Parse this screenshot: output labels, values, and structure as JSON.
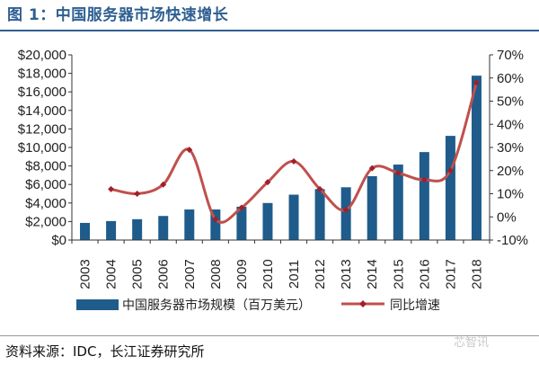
{
  "figure_title": "图 1：中国服务器市场快速增长",
  "source": "资料来源：IDC，长江证券研究所",
  "watermark": "芯智讯",
  "chart_data": {
    "type": "bar",
    "combo": "bar + line (dual axis)",
    "title": "",
    "categories": [
      "2003",
      "2004",
      "2005",
      "2006",
      "2007",
      "2008",
      "2009",
      "2010",
      "2011",
      "2012",
      "2013",
      "2014",
      "2015",
      "2016",
      "2017",
      "2018"
    ],
    "series": [
      {
        "name": "中国服务器市场规模（百万美元）",
        "type": "bar",
        "axis": "left",
        "color": "#1F5C8B",
        "values": [
          1850,
          2050,
          2250,
          2600,
          3300,
          3300,
          3600,
          4000,
          4900,
          5500,
          5700,
          6900,
          8150,
          9500,
          11250,
          17750
        ]
      },
      {
        "name": "同比增速",
        "type": "line",
        "axis": "right",
        "color": "#C0504D",
        "marker_color": "#A0202A",
        "values": [
          null,
          12,
          10,
          14,
          29,
          -1,
          4,
          15,
          24,
          12,
          3,
          21,
          19,
          16,
          20,
          58
        ]
      }
    ],
    "y_left": {
      "min": 0,
      "max": 20000,
      "ticks": [
        "$0",
        "$2,000",
        "$4,000",
        "$6,000",
        "$8,000",
        "$10,000",
        "$12,000",
        "$14,000",
        "$16,000",
        "$18,000",
        "$20,000"
      ]
    },
    "y_right": {
      "min": -10,
      "max": 70,
      "ticks": [
        "-10%",
        "0%",
        "10%",
        "20%",
        "30%",
        "40%",
        "50%",
        "60%",
        "70%"
      ]
    },
    "grid": false,
    "legend_position": "bottom"
  }
}
